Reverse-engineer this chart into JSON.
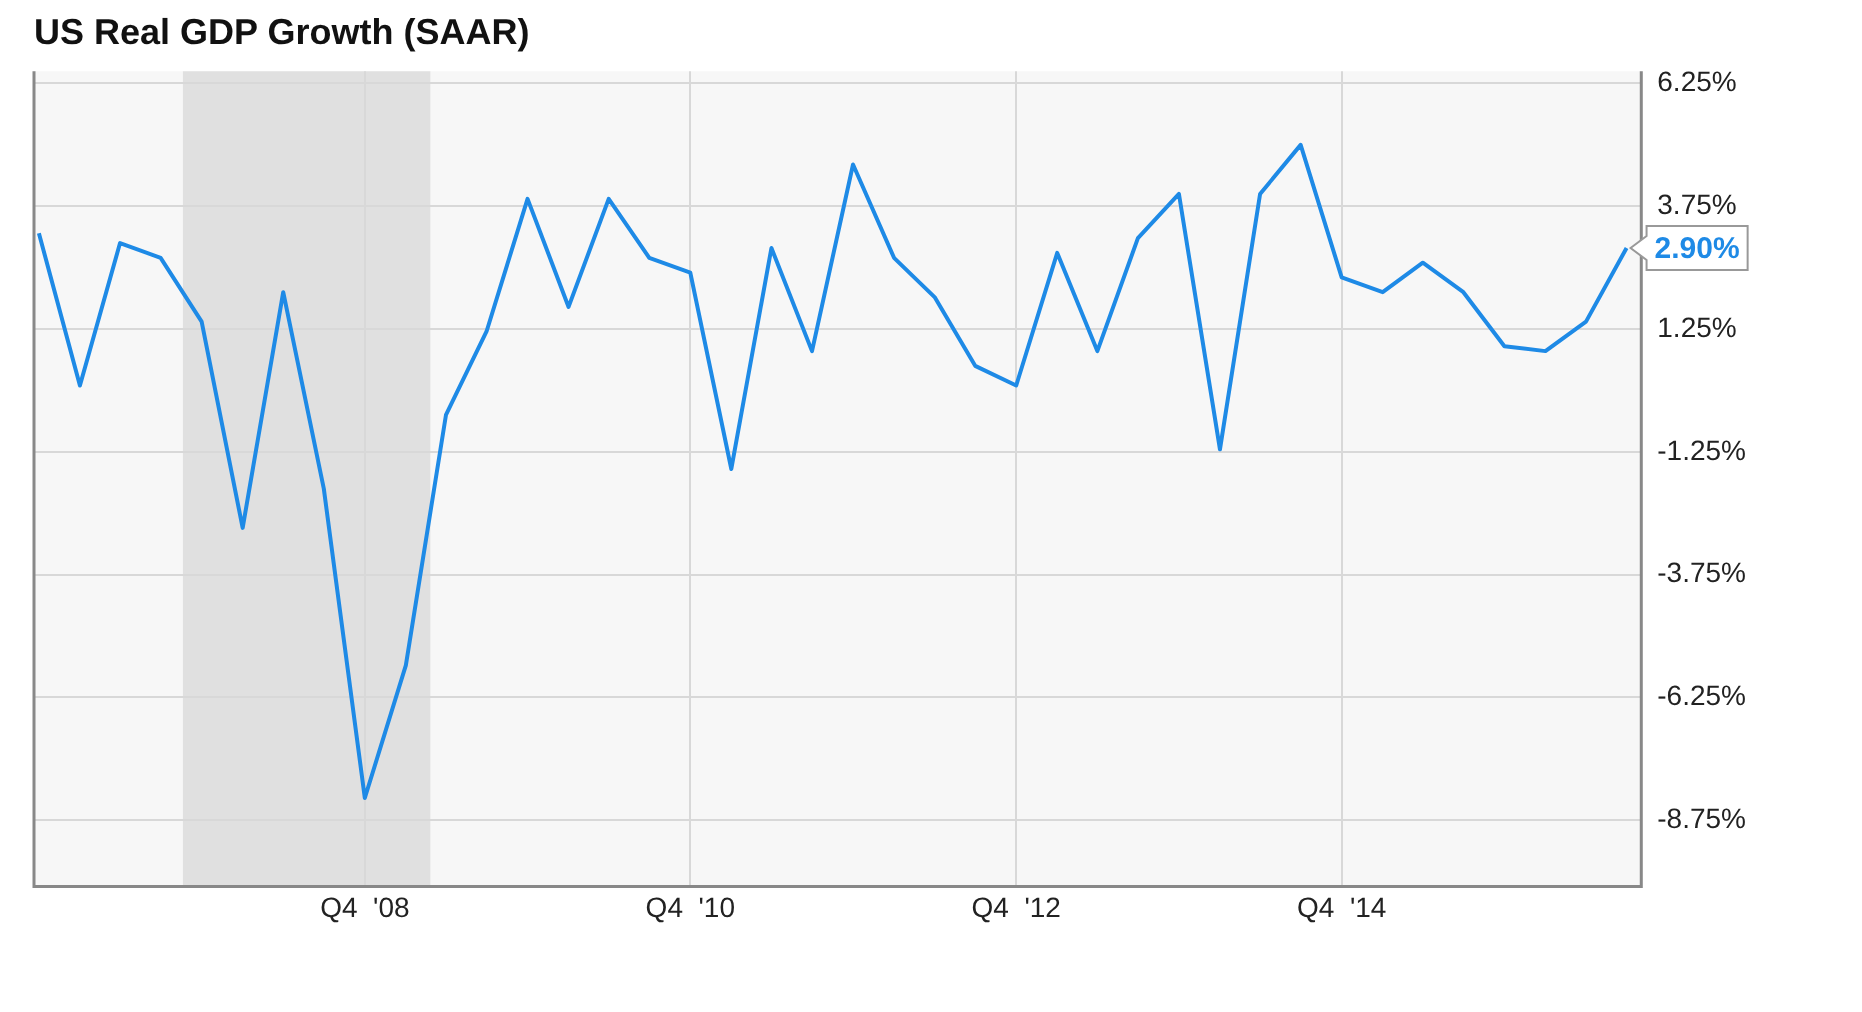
{
  "chart_data": {
    "type": "line",
    "title": "US Real GDP Growth (SAAR)",
    "x": [
      "2006-10",
      "2007-01",
      "2007-04",
      "2007-07",
      "2007-10",
      "2008-01",
      "2008-04",
      "2008-07",
      "2008-10",
      "2009-01",
      "2009-04",
      "2009-07",
      "2009-10",
      "2010-01",
      "2010-04",
      "2010-07",
      "2010-10",
      "2011-01",
      "2011-04",
      "2011-07",
      "2011-10",
      "2012-01",
      "2012-04",
      "2012-07",
      "2012-10",
      "2013-01",
      "2013-04",
      "2013-07",
      "2013-10",
      "2014-01",
      "2014-04",
      "2014-07",
      "2014-10",
      "2015-01",
      "2015-04",
      "2015-07",
      "2015-10",
      "2016-01",
      "2016-04",
      "2016-07"
    ],
    "series": [
      {
        "color": "#1e8ae6",
        "values": [
          3.2,
          0.1,
          3.0,
          2.7,
          1.4,
          -2.8,
          2.0,
          -2.0,
          -8.3,
          -5.6,
          -0.5,
          1.2,
          3.9,
          1.7,
          3.9,
          2.7,
          2.4,
          -1.6,
          2.9,
          0.8,
          4.6,
          2.7,
          1.9,
          0.5,
          0.1,
          2.8,
          0.8,
          3.1,
          4.0,
          -1.2,
          4.0,
          5.0,
          2.3,
          2.0,
          2.6,
          2.0,
          0.9,
          0.8,
          1.4,
          2.9
        ],
        "value_labels": [
          null,
          null,
          null,
          null,
          null,
          null,
          null,
          null,
          null,
          null,
          null,
          null,
          null,
          null,
          null,
          null,
          null,
          null,
          null,
          null,
          null,
          null,
          null,
          null,
          null,
          null,
          null,
          null,
          null,
          null,
          null,
          null,
          null,
          null,
          null,
          null,
          null,
          null,
          null,
          "2.90%"
        ]
      }
    ],
    "xlim": [
      "2006-09-20",
      "2016-08-03"
    ],
    "xticks": [
      {
        "value": "2008-10",
        "label": "Q4  '08"
      },
      {
        "value": "2010-10",
        "label": "Q4  '10"
      },
      {
        "value": "2012-10",
        "label": "Q4  '12"
      },
      {
        "value": "2014-10",
        "label": "Q4  '14"
      }
    ],
    "ylim": [
      -10.1,
      6.5
    ],
    "yticks": [
      {
        "value": -8.75,
        "label": "-8.75%"
      },
      {
        "value": -6.25,
        "label": "-6.25%"
      },
      {
        "value": -3.75,
        "label": "-3.75%"
      },
      {
        "value": -1.25,
        "label": "-1.25%"
      },
      {
        "value": 1.25,
        "label": "1.25%"
      },
      {
        "value": 3.75,
        "label": "3.75%"
      },
      {
        "value": 6.25,
        "label": "6.25%"
      }
    ],
    "bands": [
      {
        "axis": "x",
        "from": "2007-08-20",
        "to": "2009-02-25",
        "color": "#e0e0e0"
      }
    ],
    "grid": true,
    "legend": false,
    "marker": "none",
    "line_style": "solid"
  }
}
